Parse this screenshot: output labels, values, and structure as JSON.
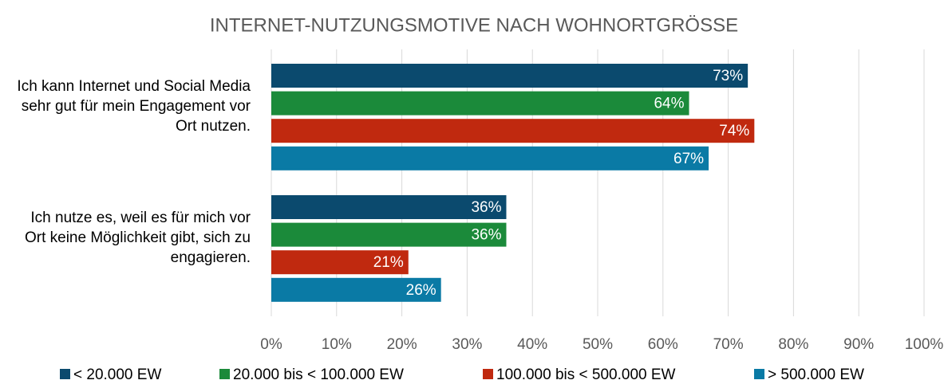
{
  "chart_data": {
    "type": "bar",
    "orientation": "horizontal",
    "title": "INTERNET-NUTZUNGSMOTIVE NACH WOHNORTGRÖSSE",
    "categories": [
      "Ich kann Internet und Social Media sehr gut für mein Engagement vor Ort nutzen.",
      "Ich nutze es, weil es für mich vor Ort keine Möglichkeit gibt, sich zu engagieren."
    ],
    "series": [
      {
        "name": "< 20.000 EW",
        "color": "#0b4a6e",
        "values": [
          73,
          36
        ],
        "value_labels": [
          "73%",
          "36%"
        ]
      },
      {
        "name": "20.000 bis < 100.000 EW",
        "color": "#1b8a3a",
        "values": [
          64,
          36
        ],
        "value_labels": [
          "64%",
          "36%"
        ]
      },
      {
        "name": "100.000 bis < 500.000 EW",
        "color": "#c0290f",
        "values": [
          74,
          21
        ],
        "value_labels": [
          "74%",
          "21%"
        ]
      },
      {
        "name": "> 500.000 EW",
        "color": "#0a7aa5",
        "values": [
          67,
          26
        ],
        "value_labels": [
          "67%",
          "26%"
        ]
      }
    ],
    "xlim": [
      0,
      100
    ],
    "xticks": [
      {
        "value": 0,
        "label": "0%"
      },
      {
        "value": 10,
        "label": "10%"
      },
      {
        "value": 20,
        "label": "20%"
      },
      {
        "value": 30,
        "label": "30%"
      },
      {
        "value": 40,
        "label": "40%"
      },
      {
        "value": 50,
        "label": "50%"
      },
      {
        "value": 60,
        "label": "60%"
      },
      {
        "value": 70,
        "label": "70%"
      },
      {
        "value": 80,
        "label": "80%"
      },
      {
        "value": 90,
        "label": "90%"
      },
      {
        "value": 100,
        "label": "100%"
      }
    ],
    "grid": true,
    "legend": "bottom"
  }
}
